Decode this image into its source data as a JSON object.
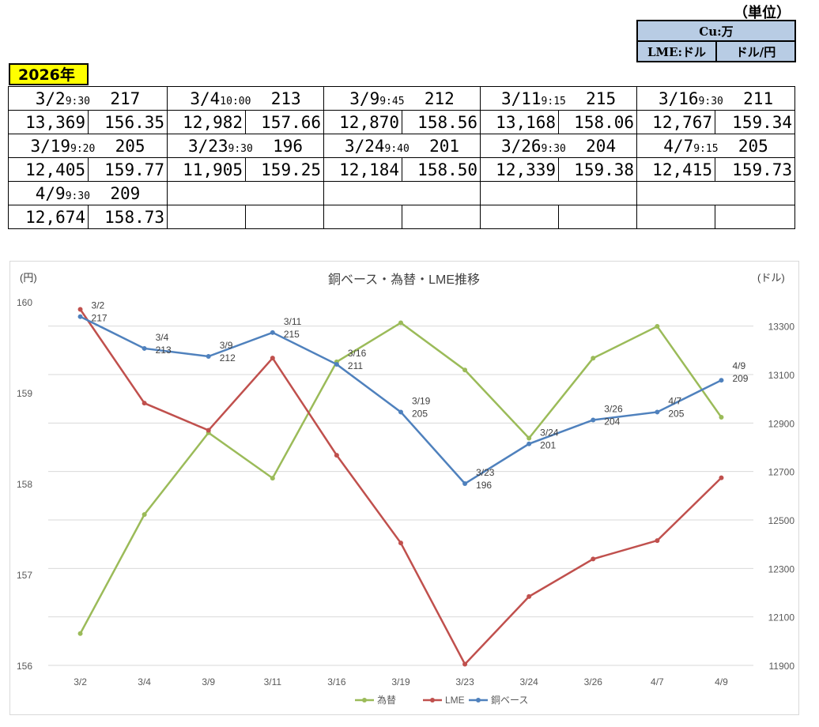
{
  "header": {
    "unit_label": "（単位）"
  },
  "unit_table": {
    "title": "Cu:万",
    "col1": "LME:ドル",
    "col2": "ドル/円"
  },
  "year_label": "2026年",
  "quotes": [
    {
      "date": "3/2",
      "time": "9:30",
      "base": "217",
      "lme": "13,369",
      "fx": "156.35"
    },
    {
      "date": "3/4",
      "time": "10:00",
      "base": "213",
      "lme": "12,982",
      "fx": "157.66"
    },
    {
      "date": "3/9",
      "time": "9:45",
      "base": "212",
      "lme": "12,870",
      "fx": "158.56"
    },
    {
      "date": "3/11",
      "time": "9:15",
      "base": "215",
      "lme": "13,168",
      "fx": "158.06"
    },
    {
      "date": "3/16",
      "time": "9:30",
      "base": "211",
      "lme": "12,767",
      "fx": "159.34"
    },
    {
      "date": "3/19",
      "time": "9:20",
      "base": "205",
      "lme": "12,405",
      "fx": "159.77"
    },
    {
      "date": "3/23",
      "time": "9:30",
      "base": "196",
      "lme": "11,905",
      "fx": "159.25"
    },
    {
      "date": "3/24",
      "time": "9:40",
      "base": "201",
      "lme": "12,184",
      "fx": "158.50"
    },
    {
      "date": "3/26",
      "time": "9:30",
      "base": "204",
      "lme": "12,339",
      "fx": "159.38"
    },
    {
      "date": "4/7",
      "time": "9:15",
      "base": "205",
      "lme": "12,415",
      "fx": "159.73"
    },
    {
      "date": "4/9",
      "time": "9:30",
      "base": "209",
      "lme": "12,674",
      "fx": "158.73"
    }
  ],
  "chart_data": {
    "type": "line",
    "title": "銅ベース・為替・LME推移",
    "left_axis_label": "(円)",
    "right_axis_label": "(ドル)",
    "categories": [
      "3/2",
      "3/4",
      "3/9",
      "3/11",
      "3/16",
      "3/19",
      "3/23",
      "3/24",
      "3/26",
      "4/7",
      "4/9"
    ],
    "left_ylim": [
      156,
      160
    ],
    "left_ticks": [
      156,
      157,
      158,
      159,
      160
    ],
    "right_ylim": [
      11900,
      13400
    ],
    "right_ticks": [
      11900,
      12100,
      12300,
      12500,
      12700,
      12900,
      13100,
      13300
    ],
    "grid": true,
    "legend_position": "bottom",
    "colors": {
      "fx": "#9bbb59",
      "lme": "#c0504d",
      "base": "#4f81bd"
    },
    "series": [
      {
        "name": "為替",
        "axis": "left",
        "values": [
          156.35,
          157.66,
          158.56,
          158.06,
          159.34,
          159.77,
          159.25,
          158.5,
          159.38,
          159.73,
          158.73
        ]
      },
      {
        "name": "LME",
        "axis": "right",
        "values": [
          13369,
          12982,
          12870,
          13168,
          12767,
          12405,
          11905,
          12184,
          12339,
          12415,
          12674
        ]
      },
      {
        "name": "銅ベース",
        "axis": "base",
        "values": [
          217,
          213,
          212,
          215,
          211,
          205,
          196,
          201,
          204,
          205,
          209
        ]
      }
    ]
  }
}
